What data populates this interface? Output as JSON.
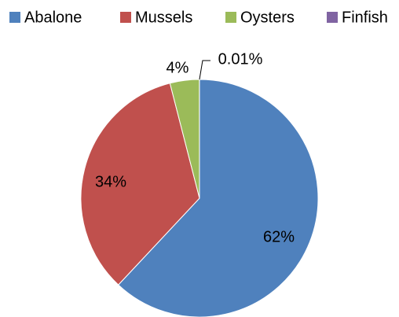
{
  "chart_data": {
    "type": "pie",
    "categories": [
      "Abalone",
      "Mussels",
      "Oysters",
      "Finfish"
    ],
    "values": [
      62,
      34,
      4,
      0.01
    ],
    "value_labels": [
      "62%",
      "34%",
      "4%",
      "0.01%"
    ],
    "colors": [
      "#4f81bd",
      "#c0504d",
      "#9bbb59",
      "#8064a2"
    ],
    "legend": "top"
  }
}
